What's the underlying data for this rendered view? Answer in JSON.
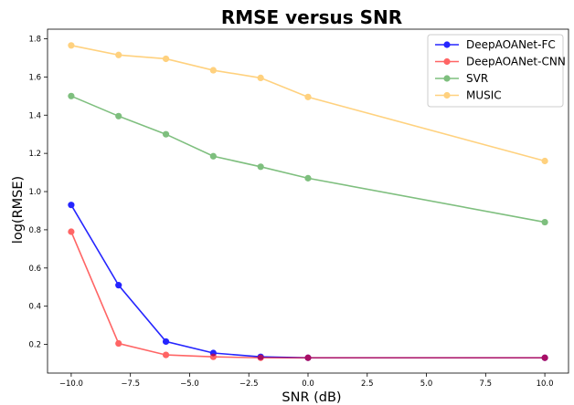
{
  "chart_data": {
    "type": "line",
    "title": "RMSE versus SNR",
    "xlabel": "SNR (dB)",
    "ylabel": "log(RMSE)",
    "xlim": [
      -11,
      11
    ],
    "ylim": [
      0.05,
      1.85
    ],
    "x": [
      -10,
      -8,
      -6,
      -4,
      -2,
      0,
      10
    ],
    "xticks": [
      -10.0,
      -7.5,
      -5.0,
      -2.5,
      0.0,
      2.5,
      5.0,
      7.5,
      10.0
    ],
    "xtick_labels": [
      "−10.0",
      "−7.5",
      "−5.0",
      "−2.5",
      "0.0",
      "2.5",
      "5.0",
      "7.5",
      "10.0"
    ],
    "yticks": [
      0.2,
      0.4,
      0.6,
      0.8,
      1.0,
      1.2,
      1.4,
      1.6,
      1.8
    ],
    "ytick_labels": [
      "0.2",
      "0.4",
      "0.6",
      "0.8",
      "1.0",
      "1.2",
      "1.4",
      "1.6",
      "1.8"
    ],
    "grid": false,
    "legend_position": "top-right",
    "series": [
      {
        "name": "DeepAOANet-FC",
        "color": "#0000ff",
        "opacity": 0.85,
        "values": [
          0.93,
          0.51,
          0.215,
          0.155,
          0.135,
          0.13,
          0.13
        ]
      },
      {
        "name": "DeepAOANet-CNN",
        "color": "#ff0000",
        "opacity": 0.6,
        "values": [
          0.79,
          0.205,
          0.145,
          0.135,
          0.13,
          0.13,
          0.13
        ]
      },
      {
        "name": "SVR",
        "color": "#008000",
        "opacity": 0.5,
        "values": [
          1.5,
          1.395,
          1.3,
          1.185,
          1.13,
          1.07,
          0.84
        ]
      },
      {
        "name": "MUSIC",
        "color": "#ffa500",
        "opacity": 0.5,
        "values": [
          1.765,
          1.715,
          1.695,
          1.635,
          1.595,
          1.495,
          1.16
        ]
      }
    ]
  }
}
